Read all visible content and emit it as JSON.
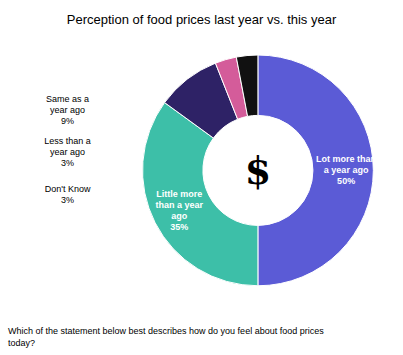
{
  "chart_data": {
    "type": "pie",
    "title": "Perception of food prices last year vs. this year",
    "subtitle": "Which of the statement below best describes how do you feel about food prices\ntoday?",
    "annotations": [
      "$"
    ],
    "categories": [
      "Lot more than\na year ago",
      "Little more\nthan a year\nago",
      "Same as a\nyear ago",
      "Less than a\nyear ago",
      "Don't Know"
    ],
    "values": [
      50,
      35,
      9,
      3,
      3
    ],
    "value_labels": [
      "50%",
      "35%",
      "9%",
      "3%",
      "3%"
    ],
    "colors": [
      "#5B5BD6",
      "#3DBFA8",
      "#2E2266",
      "#D45C9A",
      "#111111"
    ],
    "data_labels": true
  }
}
